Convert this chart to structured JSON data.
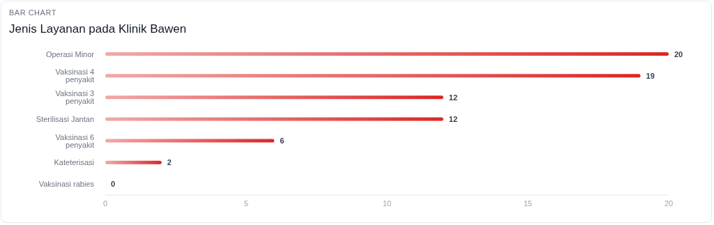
{
  "chart_data": {
    "type": "bar",
    "orientation": "horizontal",
    "subtitle": "BAR CHART",
    "title": "Jenis Layanan pada Klinik Bawen",
    "categories": [
      "Operasi Minor",
      "Vaksinasi 4 penyakit",
      "Vaksinasi 3 penyakit",
      "Sterilisasi Jantan",
      "Vaksinasi 6 penyakit",
      "Kateterisasi",
      "Vaksinasi rabies"
    ],
    "values": [
      20,
      19,
      12,
      12,
      6,
      2,
      0
    ],
    "color": "#dc2626",
    "xlim": [
      0,
      20
    ],
    "xticks": [
      0,
      5,
      10,
      15,
      20
    ],
    "grid": false,
    "data_labels": true
  }
}
